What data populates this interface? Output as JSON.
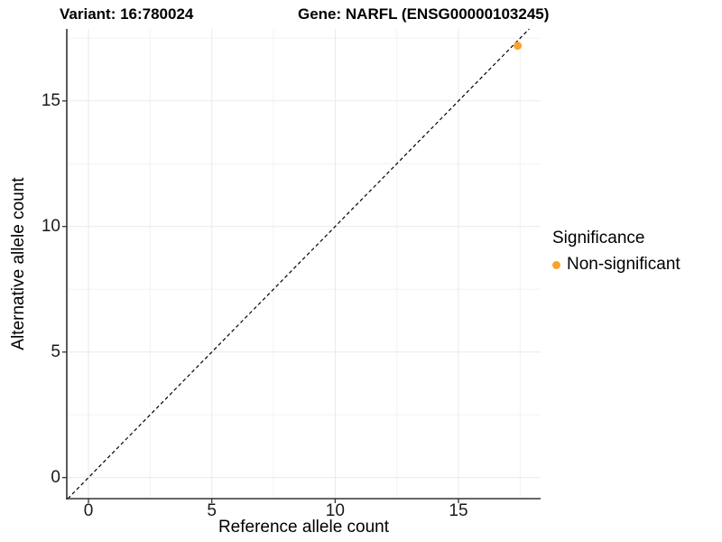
{
  "chart_data": {
    "type": "scatter",
    "title_left": "Variant: 16:780024",
    "title_right": "Gene: NARFL (ENSG00000103245)",
    "xlabel": "Reference allele count",
    "ylabel": "Alternative allele count",
    "xticks": [
      0,
      5,
      10,
      15
    ],
    "yticks": [
      0,
      5,
      10,
      15
    ],
    "xminor": [
      2.5,
      7.5,
      12.5,
      17.5
    ],
    "yminor": [
      2.5,
      7.5,
      12.5,
      17.5
    ],
    "xlim": [
      -0.88,
      18.33
    ],
    "ylim": [
      -0.84,
      17.87
    ],
    "grid": "major+minor horizontal+vertical, very light gray",
    "identity_line": {
      "type": "abline",
      "slope": 1,
      "intercept": 0,
      "linetype": "dashed",
      "color": "#000000"
    },
    "points": [
      {
        "x": 17.4,
        "y": 17.2,
        "series": "Non-significant",
        "color": "#F9A329"
      }
    ],
    "legend": {
      "title": "Significance",
      "position": "right",
      "items": [
        {
          "label": "Non-significant",
          "color": "#F9A329"
        }
      ]
    },
    "colors": {
      "background": "#FFFFFF",
      "axis_line": "#333333",
      "grid_major": "#E9E9E9",
      "grid_minor": "#F3F3F3",
      "tick_text": "#1a1a1a",
      "point": "#F9A329"
    }
  }
}
